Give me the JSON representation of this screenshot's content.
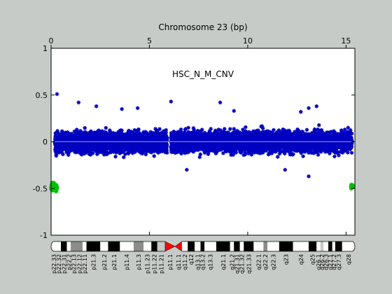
{
  "figure": {
    "background": "#c7cbc7",
    "plot_background": "#ffffff"
  },
  "chart_data": {
    "type": "scatter",
    "title": "Chromosome 23 (bp)",
    "annotation": "HSC_N_M_CNV",
    "xlim": [
      0,
      15.45
    ],
    "ylim": [
      -1,
      1
    ],
    "x_ticks": [
      0,
      5,
      10,
      15
    ],
    "y_ticks": [
      1,
      0.5,
      0,
      -0.5,
      -1
    ],
    "x_tick_labels": [
      "0",
      "5",
      "10",
      "15"
    ],
    "y_tick_labels": [
      "1",
      "0.5",
      "0",
      "-0.5",
      "-1"
    ],
    "zero_line": true,
    "grid": false,
    "series": [
      {
        "color": "#0000c0",
        "marker": "star",
        "segments": [
          {
            "x_start": 0.2,
            "x_end": 5.9,
            "y_center": 0.0,
            "y_spread": 0.22
          },
          {
            "x_start": 6.1,
            "x_end": 15.3,
            "y_center": 0.0,
            "y_spread": 0.22
          }
        ],
        "outliers": [
          {
            "x": 0.3,
            "y": 0.51
          },
          {
            "x": 1.4,
            "y": 0.42
          },
          {
            "x": 2.3,
            "y": 0.38
          },
          {
            "x": 3.6,
            "y": 0.35
          },
          {
            "x": 4.4,
            "y": 0.36
          },
          {
            "x": 6.1,
            "y": 0.43
          },
          {
            "x": 8.6,
            "y": 0.42
          },
          {
            "x": 13.1,
            "y": 0.36
          },
          {
            "x": 13.5,
            "y": 0.38
          },
          {
            "x": 12.7,
            "y": 0.32
          },
          {
            "x": 9.3,
            "y": 0.33
          },
          {
            "x": 13.1,
            "y": -0.37
          },
          {
            "x": 6.9,
            "y": -0.3
          },
          {
            "x": 11.9,
            "y": -0.3
          }
        ]
      },
      {
        "color": "#00c000",
        "marker": "star",
        "segments": [
          {
            "x_start": 0.0,
            "x_end": 0.3,
            "y_center": -0.48,
            "y_spread": 0.09
          },
          {
            "x_start": 15.25,
            "x_end": 15.35,
            "y_center": -0.48,
            "y_spread": 0.05
          }
        ]
      }
    ],
    "ideogram": {
      "centromere_color": "#ff0000",
      "bands": [
        {
          "name": "p22.33",
          "x_start": 0.0,
          "x_end": 0.3,
          "stain": "white"
        },
        {
          "name": "p22.32",
          "x_start": 0.3,
          "x_end": 0.5,
          "stain": "white"
        },
        {
          "name": "p22.31",
          "x_start": 0.5,
          "x_end": 0.8,
          "stain": "black"
        },
        {
          "name": "p22.2",
          "x_start": 0.8,
          "x_end": 1.0,
          "stain": "white"
        },
        {
          "name": "p22.13",
          "x_start": 1.0,
          "x_end": 1.3,
          "stain": "gray"
        },
        {
          "name": "p22.12",
          "x_start": 1.3,
          "x_end": 1.6,
          "stain": "gray"
        },
        {
          "name": "p22.11",
          "x_start": 1.6,
          "x_end": 1.8,
          "stain": "white"
        },
        {
          "name": "p21.3",
          "x_start": 1.8,
          "x_end": 2.5,
          "stain": "black"
        },
        {
          "name": "p21.2",
          "x_start": 2.5,
          "x_end": 2.9,
          "stain": "white"
        },
        {
          "name": "p21.1",
          "x_start": 2.9,
          "x_end": 3.5,
          "stain": "black"
        },
        {
          "name": "p11.4",
          "x_start": 3.5,
          "x_end": 4.2,
          "stain": "white"
        },
        {
          "name": "p11.3",
          "x_start": 4.2,
          "x_end": 4.7,
          "stain": "gray"
        },
        {
          "name": "p11.23",
          "x_start": 4.7,
          "x_end": 5.1,
          "stain": "white"
        },
        {
          "name": "p11.22",
          "x_start": 5.1,
          "x_end": 5.4,
          "stain": "black"
        },
        {
          "name": "p11.21",
          "x_start": 5.4,
          "x_end": 5.8,
          "stain": "lightgray"
        },
        {
          "name": "p11.1",
          "x_start": 5.8,
          "x_end": 6.3,
          "stain": "centromere"
        },
        {
          "name": "q11.1",
          "x_start": 6.3,
          "x_end": 6.65,
          "stain": "centromere"
        },
        {
          "name": "q11.2",
          "x_start": 6.65,
          "x_end": 6.95,
          "stain": "white"
        },
        {
          "name": "q12",
          "x_start": 6.95,
          "x_end": 7.3,
          "stain": "black"
        },
        {
          "name": "q13.1",
          "x_start": 7.3,
          "x_end": 7.6,
          "stain": "white"
        },
        {
          "name": "q13.2",
          "x_start": 7.6,
          "x_end": 7.8,
          "stain": "black"
        },
        {
          "name": "q13.3",
          "x_start": 7.8,
          "x_end": 8.4,
          "stain": "white"
        },
        {
          "name": "q21.1",
          "x_start": 8.4,
          "x_end": 9.1,
          "stain": "black"
        },
        {
          "name": "q21.2",
          "x_start": 9.1,
          "x_end": 9.3,
          "stain": "white"
        },
        {
          "name": "q21.31",
          "x_start": 9.3,
          "x_end": 9.6,
          "stain": "black"
        },
        {
          "name": "q21.32",
          "x_start": 9.6,
          "x_end": 9.8,
          "stain": "white"
        },
        {
          "name": "q21.33",
          "x_start": 9.8,
          "x_end": 10.3,
          "stain": "black"
        },
        {
          "name": "q22.1",
          "x_start": 10.3,
          "x_end": 10.8,
          "stain": "white"
        },
        {
          "name": "q22.2",
          "x_start": 10.8,
          "x_end": 11.0,
          "stain": "gray"
        },
        {
          "name": "q22.3",
          "x_start": 11.0,
          "x_end": 11.6,
          "stain": "white"
        },
        {
          "name": "q23",
          "x_start": 11.6,
          "x_end": 12.3,
          "stain": "black"
        },
        {
          "name": "q24",
          "x_start": 12.3,
          "x_end": 13.1,
          "stain": "white"
        },
        {
          "name": "q25",
          "x_start": 13.1,
          "x_end": 13.5,
          "stain": "black"
        },
        {
          "name": "q26.1",
          "x_start": 13.5,
          "x_end": 13.7,
          "stain": "white"
        },
        {
          "name": "q26.2",
          "x_start": 13.7,
          "x_end": 13.85,
          "stain": "lightgray"
        },
        {
          "name": "q26.3",
          "x_start": 13.85,
          "x_end": 14.1,
          "stain": "white"
        },
        {
          "name": "q27.1",
          "x_start": 14.1,
          "x_end": 14.3,
          "stain": "black"
        },
        {
          "name": "q27.2",
          "x_start": 14.3,
          "x_end": 14.45,
          "stain": "white"
        },
        {
          "name": "q27.3",
          "x_start": 14.45,
          "x_end": 14.8,
          "stain": "black"
        },
        {
          "name": "q28",
          "x_start": 14.8,
          "x_end": 15.45,
          "stain": "white"
        }
      ]
    }
  }
}
